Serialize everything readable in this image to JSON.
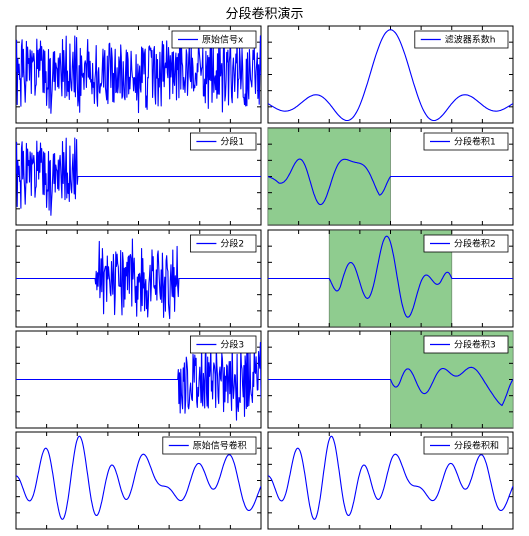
{
  "page": {
    "title": "分段卷积演示"
  },
  "colors": {
    "line": "#0000ff",
    "window_fill": "#8fcc8f",
    "axes": "#000000",
    "background": "#ffffff"
  },
  "chart_data": [
    {
      "type": "line",
      "legend": "原始信号x",
      "legend_loc": "upper-right",
      "kind": "noise",
      "seed": 1,
      "x_range": [
        0,
        400
      ],
      "ylim": [
        -1.15,
        1.15
      ]
    },
    {
      "type": "line",
      "legend": "滤波器系数h",
      "legend_loc": "upper-right",
      "kind": "sinc",
      "x_range": [
        0,
        101
      ],
      "ylim": [
        -0.25,
        1.05
      ]
    },
    {
      "type": "line",
      "legend": "分段1",
      "legend_loc": "upper-right",
      "kind": "noise_segment",
      "seed": 1,
      "x_range": [
        0,
        400
      ],
      "segment": [
        0,
        100
      ],
      "ylim": [
        -1.15,
        1.15
      ]
    },
    {
      "type": "line",
      "legend": "分段卷积1",
      "legend_loc": "upper-right",
      "kind": "convpart",
      "seed": 11,
      "x_range": [
        0,
        400
      ],
      "active": [
        0,
        200
      ],
      "window": [
        0,
        200
      ],
      "ylim": [
        -1.1,
        1.1
      ]
    },
    {
      "type": "line",
      "legend": "分段2",
      "legend_loc": "upper-right",
      "kind": "noise_segment",
      "seed": 2,
      "x_range": [
        0,
        400
      ],
      "segment": [
        130,
        265
      ],
      "ylim": [
        -1.15,
        1.15
      ]
    },
    {
      "type": "line",
      "legend": "分段卷积2",
      "legend_loc": "upper-right",
      "kind": "convpart",
      "seed": 22,
      "x_range": [
        0,
        400
      ],
      "active": [
        100,
        300
      ],
      "window": [
        100,
        300
      ],
      "ylim": [
        -1.1,
        1.1
      ]
    },
    {
      "type": "line",
      "legend": "分段3",
      "legend_loc": "upper-right",
      "kind": "noise_segment",
      "seed": 3,
      "x_range": [
        0,
        400
      ],
      "segment": [
        265,
        400
      ],
      "ylim": [
        -1.15,
        1.15
      ]
    },
    {
      "type": "line",
      "legend": "分段卷积3",
      "legend_loc": "upper-right",
      "kind": "convpart",
      "seed": 33,
      "x_range": [
        0,
        400
      ],
      "active": [
        200,
        400
      ],
      "window": [
        200,
        400
      ],
      "ylim": [
        -1.1,
        1.1
      ]
    },
    {
      "type": "line",
      "legend": "原始信号卷积",
      "legend_loc": "upper-right",
      "kind": "smooth",
      "seed": 44,
      "x_range": [
        0,
        400
      ],
      "ylim": [
        -1.1,
        1.1
      ]
    },
    {
      "type": "line",
      "legend": "分段卷积和",
      "legend_loc": "upper-right",
      "kind": "smooth",
      "seed": 44,
      "x_range": [
        0,
        400
      ],
      "ylim": [
        -1.1,
        1.1
      ]
    }
  ]
}
